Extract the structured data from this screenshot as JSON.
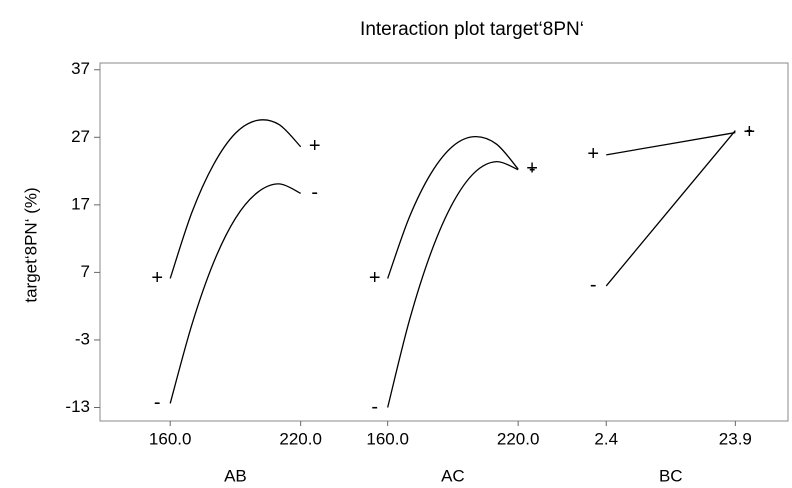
{
  "chart_data": {
    "type": "line",
    "title": "Interaction plot target‘8PN‘",
    "y_label": "target‘8PN‘ (%)",
    "ylim": [
      -15,
      38
    ],
    "yticks": [
      -13,
      -3,
      7,
      17,
      27,
      37
    ],
    "grid": false,
    "panels": [
      {
        "name": "AB",
        "xlim": [
          136,
          239
        ],
        "xticks": [
          {
            "value": 160,
            "label": "160.0"
          },
          {
            "value": 220,
            "label": "220.0"
          }
        ],
        "x": [
          160,
          170,
          180,
          190,
          200,
          210,
          220
        ],
        "series": [
          {
            "name": "+",
            "color": "#000000",
            "values": [
              6.1,
              15.9,
              23.0,
              27.6,
              29.5,
              28.9,
              25.6
            ]
          },
          {
            "name": "-",
            "color": "#000000",
            "values": [
              -12.4,
              -0.7,
              8.5,
              15.0,
              18.8,
              20.1,
              18.7
            ]
          }
        ]
      },
      {
        "name": "AC",
        "xlim": [
          139,
          242
        ],
        "xticks": [
          {
            "value": 160,
            "label": "160.0"
          },
          {
            "value": 220,
            "label": "220.0"
          }
        ],
        "x": [
          160,
          170,
          180,
          190,
          200,
          210,
          220
        ],
        "series": [
          {
            "name": "+",
            "color": "#000000",
            "values": [
              6.1,
              15.2,
              21.7,
              25.7,
              27.1,
              26.0,
              22.3
            ]
          },
          {
            "name": "-",
            "color": "#000000",
            "values": [
              -13,
              -0.1,
              10.0,
              17.3,
              21.8,
              23.4,
              22.2
            ]
          }
        ]
      },
      {
        "name": "BC",
        "xlim": [
          -4.3,
          33
        ],
        "xticks": [
          2.4,
          23.9
        ],
        "x": [
          2.4,
          23.9
        ],
        "series": [
          {
            "name": "+",
            "color": "#000000",
            "values": [
              24.4,
              27.7
            ]
          },
          {
            "name": "-",
            "color": "#000000",
            "values": [
              5.0,
              28.0
            ]
          }
        ]
      }
    ]
  }
}
